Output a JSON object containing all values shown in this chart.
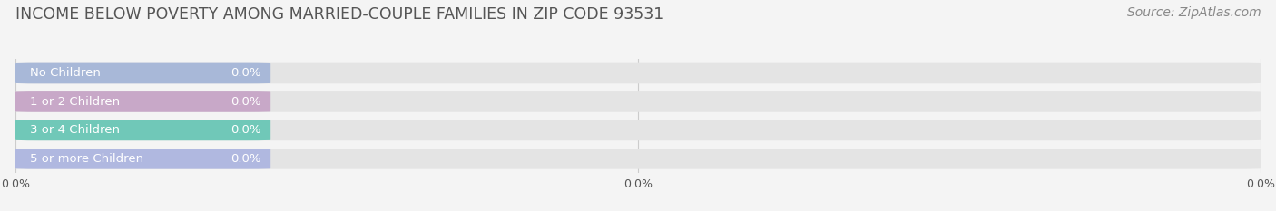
{
  "title": "INCOME BELOW POVERTY AMONG MARRIED-COUPLE FAMILIES IN ZIP CODE 93531",
  "source": "Source: ZipAtlas.com",
  "categories": [
    "No Children",
    "1 or 2 Children",
    "3 or 4 Children",
    "5 or more Children"
  ],
  "values": [
    0.0,
    0.0,
    0.0,
    0.0
  ],
  "bar_colors": [
    "#a8b8d8",
    "#c8a8c8",
    "#70c8b8",
    "#b0b8e0"
  ],
  "background_color": "#f4f4f4",
  "bar_bg_color": "#e4e4e4",
  "title_color": "#555555",
  "label_color": "#555555",
  "value_color": "#ffffff",
  "source_color": "#888888",
  "tick_color": "#555555",
  "title_fontsize": 12.5,
  "label_fontsize": 9.5,
  "tick_fontsize": 9,
  "source_fontsize": 10
}
